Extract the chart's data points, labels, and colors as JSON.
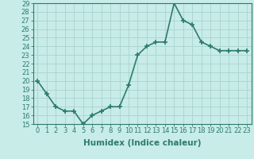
{
  "x": [
    0,
    1,
    2,
    3,
    4,
    5,
    6,
    7,
    8,
    9,
    10,
    11,
    12,
    13,
    14,
    15,
    16,
    17,
    18,
    19,
    20,
    21,
    22,
    23
  ],
  "y": [
    20,
    18.5,
    17,
    16.5,
    16.5,
    15,
    16,
    16.5,
    17,
    17,
    19.5,
    23,
    24,
    24.5,
    24.5,
    29,
    27,
    26.5,
    24.5,
    24,
    23.5,
    23.5,
    23.5,
    23.5
  ],
  "xlim": [
    -0.5,
    23.5
  ],
  "ylim": [
    15,
    29
  ],
  "yticks": [
    15,
    16,
    17,
    18,
    19,
    20,
    21,
    22,
    23,
    24,
    25,
    26,
    27,
    28,
    29
  ],
  "xticks": [
    0,
    1,
    2,
    3,
    4,
    5,
    6,
    7,
    8,
    9,
    10,
    11,
    12,
    13,
    14,
    15,
    16,
    17,
    18,
    19,
    20,
    21,
    22,
    23
  ],
  "xlabel": "Humidex (Indice chaleur)",
  "line_color": "#2d7b6e",
  "marker": "+",
  "marker_size": 5,
  "bg_color": "#c8ece8",
  "grid_color": "#aad4cc",
  "line_width": 1.2,
  "xlabel_fontsize": 7.5,
  "tick_fontsize": 6
}
